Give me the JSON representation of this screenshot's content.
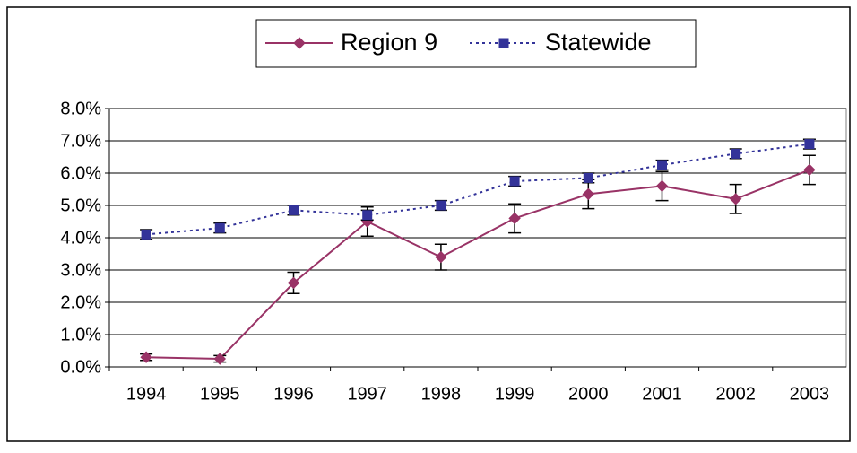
{
  "chart_data": {
    "type": "line",
    "categories": [
      "1994",
      "1995",
      "1996",
      "1997",
      "1998",
      "1999",
      "2000",
      "2001",
      "2002",
      "2003"
    ],
    "series": [
      {
        "name": "Region 9",
        "color": "#993366",
        "marker": "diamond",
        "line_style": "solid",
        "values": [
          0.3,
          0.25,
          2.6,
          4.5,
          3.4,
          4.6,
          5.35,
          5.6,
          5.2,
          6.1
        ],
        "errors": [
          0.1,
          0.1,
          0.33,
          0.45,
          0.4,
          0.45,
          0.45,
          0.45,
          0.45,
          0.45
        ]
      },
      {
        "name": "Statewide",
        "color": "#333399",
        "marker": "square",
        "line_style": "dotted",
        "values": [
          4.1,
          4.3,
          4.85,
          4.7,
          5.0,
          5.75,
          5.85,
          6.25,
          6.6,
          6.9
        ],
        "errors": [
          0.15,
          0.15,
          0.15,
          0.15,
          0.15,
          0.15,
          0.15,
          0.15,
          0.15,
          0.15
        ]
      }
    ],
    "ylim": [
      0,
      8
    ],
    "yticks": [
      {
        "value": 0,
        "label": "0.0%"
      },
      {
        "value": 1,
        "label": "1.0%"
      },
      {
        "value": 2,
        "label": "2.0%"
      },
      {
        "value": 3,
        "label": "3.0%"
      },
      {
        "value": 4,
        "label": "4.0%"
      },
      {
        "value": 5,
        "label": "5.0%"
      },
      {
        "value": 6,
        "label": "6.0%"
      },
      {
        "value": 7,
        "label": "7.0%"
      },
      {
        "value": 8,
        "label": "8.0%"
      }
    ],
    "grid": true,
    "legend": "top"
  }
}
